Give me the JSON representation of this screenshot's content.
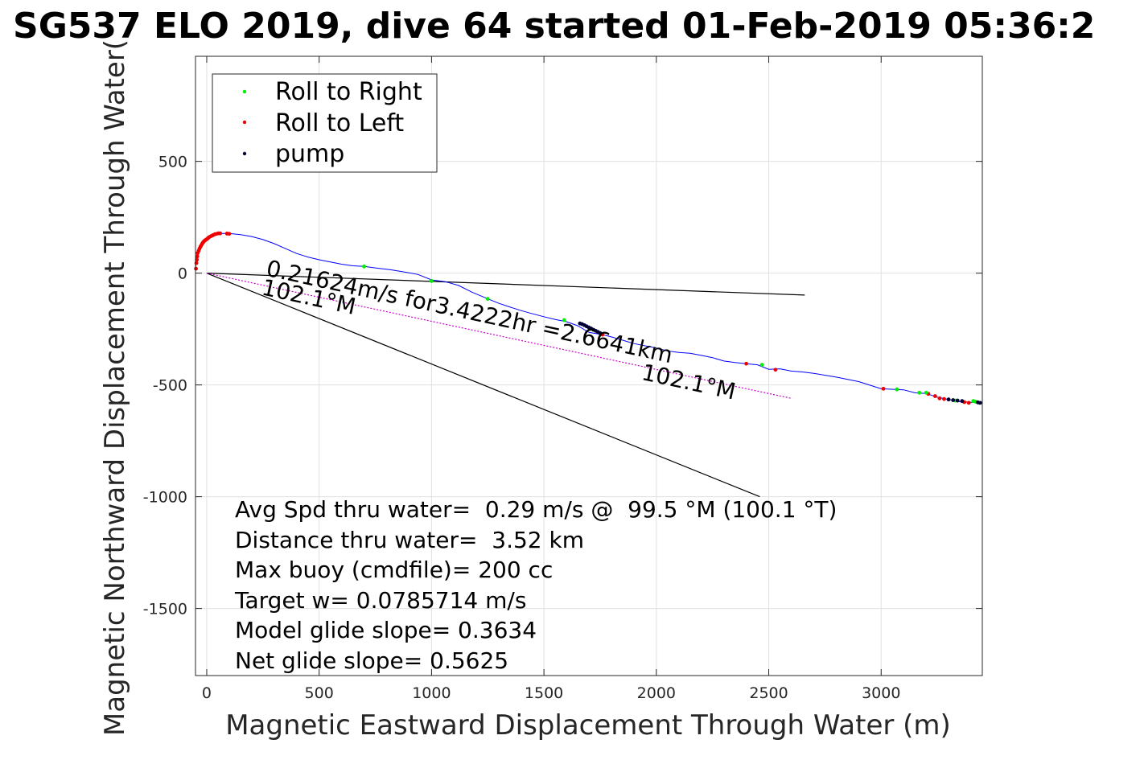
{
  "chart_data": {
    "type": "scatter",
    "title": "SG537 ELO 2019, dive 64 started 01-Feb-2019 05:36:2",
    "xlabel": "Magnetic Eastward Displacement Through Water (m)",
    "ylabel": "Magnetic Northward Displacement Through Water(",
    "xlim": [
      -50,
      3450
    ],
    "ylim": [
      -1800,
      970
    ],
    "xticks": [
      0,
      500,
      1000,
      1500,
      2000,
      2500,
      3000
    ],
    "yticks": [
      500,
      0,
      -500,
      -1000,
      -1500
    ],
    "xtick_labels": [
      "0",
      "500",
      "1000",
      "1500",
      "2000",
      "2500",
      "3000"
    ],
    "ytick_labels": [
      "500",
      "0",
      "-500",
      "-1000",
      "-1500"
    ],
    "grid": true,
    "legend_position": "top-left",
    "legend": [
      {
        "label": "Roll to Right",
        "color": "#00ee00"
      },
      {
        "label": "Roll to Left",
        "color": "#ee0000"
      },
      {
        "label": "pump",
        "color": "#000033"
      }
    ],
    "track": {
      "color": "#0000ff",
      "points": [
        [
          -50,
          15
        ],
        [
          -48,
          60
        ],
        [
          -44,
          90
        ],
        [
          -38,
          110
        ],
        [
          -30,
          125
        ],
        [
          -15,
          145
        ],
        [
          0,
          158
        ],
        [
          15,
          168
        ],
        [
          35,
          175
        ],
        [
          60,
          178
        ],
        [
          100,
          178
        ],
        [
          150,
          172
        ],
        [
          200,
          164
        ],
        [
          250,
          150
        ],
        [
          300,
          132
        ],
        [
          350,
          110
        ],
        [
          400,
          88
        ],
        [
          450,
          72
        ],
        [
          500,
          60
        ],
        [
          550,
          50
        ],
        [
          600,
          40
        ],
        [
          650,
          33
        ],
        [
          700,
          30
        ],
        [
          760,
          22
        ],
        [
          820,
          15
        ],
        [
          880,
          5
        ],
        [
          940,
          -6
        ],
        [
          1000,
          -30
        ],
        [
          1060,
          -38
        ],
        [
          1120,
          -55
        ],
        [
          1180,
          -85
        ],
        [
          1250,
          -115
        ],
        [
          1300,
          -135
        ],
        [
          1350,
          -152
        ],
        [
          1400,
          -168
        ],
        [
          1450,
          -182
        ],
        [
          1500,
          -195
        ],
        [
          1550,
          -207
        ],
        [
          1600,
          -217
        ],
        [
          1650,
          -235
        ],
        [
          1700,
          -265
        ],
        [
          1760,
          -275
        ],
        [
          1800,
          -285
        ],
        [
          1850,
          -300
        ],
        [
          1900,
          -315
        ],
        [
          1950,
          -325
        ],
        [
          2000,
          -335
        ],
        [
          2050,
          -348
        ],
        [
          2100,
          -355
        ],
        [
          2150,
          -358
        ],
        [
          2200,
          -368
        ],
        [
          2250,
          -378
        ],
        [
          2300,
          -393
        ],
        [
          2350,
          -400
        ],
        [
          2400,
          -405
        ],
        [
          2450,
          -410
        ],
        [
          2500,
          -430
        ],
        [
          2550,
          -428
        ],
        [
          2600,
          -438
        ],
        [
          2650,
          -442
        ],
        [
          2700,
          -448
        ],
        [
          2800,
          -465
        ],
        [
          2900,
          -485
        ],
        [
          3000,
          -517
        ],
        [
          3100,
          -522
        ],
        [
          3150,
          -535
        ],
        [
          3200,
          -538
        ],
        [
          3250,
          -555
        ],
        [
          3300,
          -565
        ],
        [
          3350,
          -575
        ],
        [
          3400,
          -578
        ],
        [
          3450,
          -580
        ]
      ]
    },
    "roll_right": [
      [
        700,
        30
      ],
      [
        1000,
        -35
      ],
      [
        1250,
        -115
      ],
      [
        1590,
        -210
      ],
      [
        2470,
        -410
      ],
      [
        3070,
        -520
      ],
      [
        3170,
        -535
      ],
      [
        3200,
        -535
      ],
      [
        3330,
        -570
      ],
      [
        3410,
        -572
      ],
      [
        3420,
        -575
      ]
    ],
    "roll_left": [
      [
        -48,
        20
      ],
      [
        -46,
        45
      ],
      [
        -44,
        60
      ],
      [
        -42,
        75
      ],
      [
        -40,
        90
      ],
      [
        -36,
        100
      ],
      [
        -32,
        110
      ],
      [
        -28,
        118
      ],
      [
        -24,
        125
      ],
      [
        -20,
        132
      ],
      [
        -16,
        138
      ],
      [
        -12,
        143
      ],
      [
        -6,
        148
      ],
      [
        0,
        152
      ],
      [
        6,
        157
      ],
      [
        12,
        162
      ],
      [
        20,
        166
      ],
      [
        28,
        170
      ],
      [
        36,
        174
      ],
      [
        44,
        176
      ],
      [
        52,
        178
      ],
      [
        60,
        178
      ],
      [
        90,
        177
      ],
      [
        100,
        176
      ],
      [
        1760,
        -275
      ],
      [
        2400,
        -405
      ],
      [
        2530,
        -432
      ],
      [
        3010,
        -517
      ],
      [
        3210,
        -540
      ],
      [
        3240,
        -550
      ],
      [
        3260,
        -560
      ],
      [
        3280,
        -563
      ],
      [
        3370,
        -577
      ],
      [
        3390,
        -580
      ]
    ],
    "pump": [
      [
        1660,
        -225
      ],
      [
        1670,
        -228
      ],
      [
        1680,
        -233
      ],
      [
        1690,
        -238
      ],
      [
        1700,
        -243
      ],
      [
        1710,
        -248
      ],
      [
        1720,
        -253
      ],
      [
        1730,
        -258
      ],
      [
        1740,
        -263
      ],
      [
        1750,
        -268
      ],
      [
        3300,
        -565
      ],
      [
        3320,
        -568
      ],
      [
        3340,
        -570
      ],
      [
        3360,
        -572
      ],
      [
        3430,
        -578
      ],
      [
        3440,
        -580
      ]
    ],
    "reference_lines": [
      {
        "from": [
          0,
          0
        ],
        "to": [
          2660,
          -98
        ],
        "color": "#000000"
      },
      {
        "from": [
          0,
          0
        ],
        "to": [
          2460,
          -1000
        ],
        "color": "#000000"
      },
      {
        "from": [
          0,
          0
        ],
        "to": [
          2600,
          -560
        ],
        "color": "#cc00cc",
        "style": "dotted"
      }
    ],
    "annotations": [
      {
        "text": "0.21624m/s for3.4222hr =2.6641km",
        "x": 260,
        "y": -10,
        "rotation_deg": 12.2
      },
      {
        "text": "102.1°M",
        "x": 240,
        "y": -95,
        "rotation_deg": 12.2
      },
      {
        "text": "102.1°M",
        "x": 1930,
        "y": -475,
        "rotation_deg": 12.2
      }
    ],
    "stats": [
      "Avg Spd thru water=  0.29 m/s @  99.5 °M (100.1 °T)",
      "Distance thru water=  3.52 km",
      "Max buoy (cmdfile)= 200 cc",
      "Target w= 0.0785714 m/s",
      "Model glide slope= 0.3634",
      "Net glide slope= 0.5625"
    ]
  }
}
